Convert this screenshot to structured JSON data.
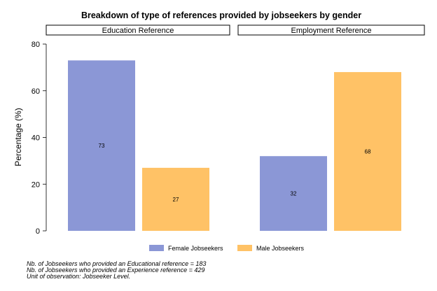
{
  "chart_data": {
    "type": "bar",
    "title": "Breakdown of type of references provided by jobseekers by gender",
    "ylabel": "Percentage (%)",
    "ylim": [
      0,
      80
    ],
    "yticks": [
      0,
      20,
      40,
      60,
      80
    ],
    "grid": false,
    "legend_position": "bottom",
    "panels": [
      "Education Reference",
      "Employment Reference"
    ],
    "series": [
      {
        "name": "Female Jobseekers",
        "color": "#8b97d6",
        "values": [
          73,
          32
        ]
      },
      {
        "name": "Male Jobseekers",
        "color": "#ffc266",
        "values": [
          27,
          68
        ]
      }
    ],
    "bar_labels": [
      [
        "73",
        "27"
      ],
      [
        "32",
        "68"
      ]
    ]
  },
  "notes": [
    "Nb. of Jobseekers who provided an Educational reference = 183",
    "Nb. of Jobseekers who provided an Experience reference = 429",
    "Unit of observation: Jobseeker Level."
  ]
}
